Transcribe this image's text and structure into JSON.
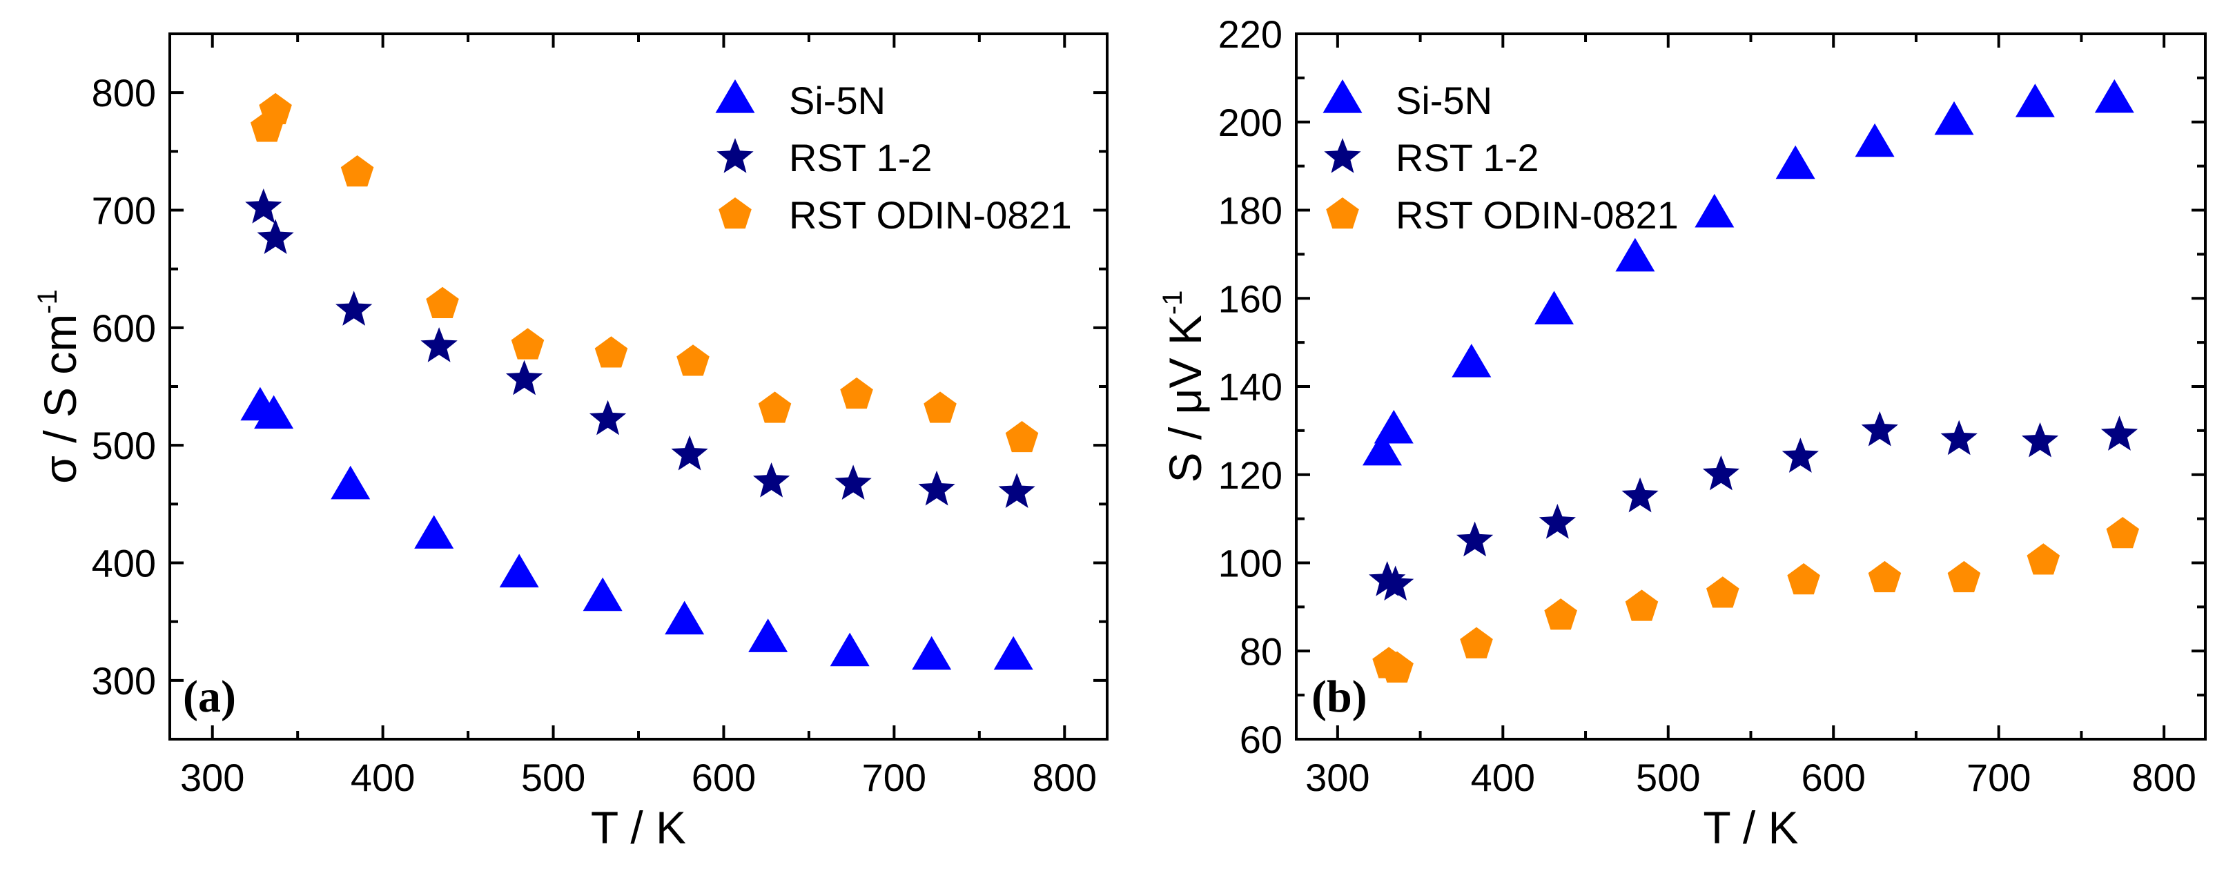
{
  "colors": {
    "Si-5N": "#0000ff",
    "RST 1-2": "#000080",
    "RST ODIN-0821": "#ff8c00"
  },
  "chart_data": [
    {
      "type": "scatter",
      "panel_label": "(a)",
      "xlabel": "T / K",
      "ylabel": "σ / S cm",
      "ylabel_sup": "-1",
      "xlim": [
        275,
        825
      ],
      "ylim": [
        250,
        850
      ],
      "xticks": [
        300,
        400,
        500,
        600,
        700,
        800
      ],
      "yticks": [
        300,
        400,
        500,
        600,
        700,
        800
      ],
      "xminor": 50,
      "yminor": 50,
      "legend_position": "top-right",
      "series": [
        {
          "name": "Si-5N",
          "marker": "triangle",
          "x": [
            328,
            336,
            381,
            430,
            480,
            529,
            577,
            626,
            674,
            722,
            770
          ],
          "y": [
            532,
            525,
            465,
            423,
            390,
            370,
            350,
            335,
            323,
            320,
            320
          ]
        },
        {
          "name": "RST 1-2",
          "marker": "star",
          "x": [
            330,
            337,
            383,
            433,
            483,
            532,
            580,
            628,
            676,
            725,
            772
          ],
          "y": [
            702,
            676,
            615,
            584,
            556,
            522,
            492,
            469,
            467,
            462,
            460
          ]
        },
        {
          "name": "RST ODIN-0821",
          "marker": "pentagon",
          "x": [
            332,
            337,
            385,
            435,
            485,
            534,
            582,
            630,
            678,
            727,
            775
          ],
          "y": [
            770,
            785,
            732,
            620,
            585,
            578,
            571,
            531,
            543,
            531,
            506
          ]
        }
      ]
    },
    {
      "type": "scatter",
      "panel_label": "(b)",
      "xlabel": "T / K",
      "ylabel": "S / μV K",
      "ylabel_sup": "-1",
      "xlim": [
        275,
        825
      ],
      "ylim": [
        60,
        220
      ],
      "xticks": [
        300,
        400,
        500,
        600,
        700,
        800
      ],
      "yticks": [
        60,
        80,
        100,
        120,
        140,
        160,
        180,
        200,
        220
      ],
      "xminor": 50,
      "yminor": 10,
      "legend_position": "top-left",
      "series": [
        {
          "name": "Si-5N",
          "marker": "triangle",
          "x": [
            327,
            334,
            381,
            431,
            480,
            528,
            577,
            625,
            673,
            722,
            770
          ],
          "y": [
            125,
            130,
            145,
            157,
            169,
            179,
            190,
            195,
            200,
            204,
            205
          ]
        },
        {
          "name": "RST 1-2",
          "marker": "star",
          "x": [
            330,
            335,
            383,
            433,
            483,
            532,
            580,
            628,
            676,
            725,
            773
          ],
          "y": [
            96,
            95,
            105,
            109,
            115,
            120,
            124,
            130,
            128,
            127.5,
            129
          ]
        },
        {
          "name": "RST ODIN-0821",
          "marker": "pentagon",
          "x": [
            331,
            336,
            384,
            435,
            484,
            533,
            582,
            631,
            679,
            727,
            775
          ],
          "y": [
            77,
            76,
            81.5,
            88,
            90,
            93,
            96,
            96.5,
            96.5,
            100.5,
            106.5
          ]
        }
      ]
    }
  ]
}
